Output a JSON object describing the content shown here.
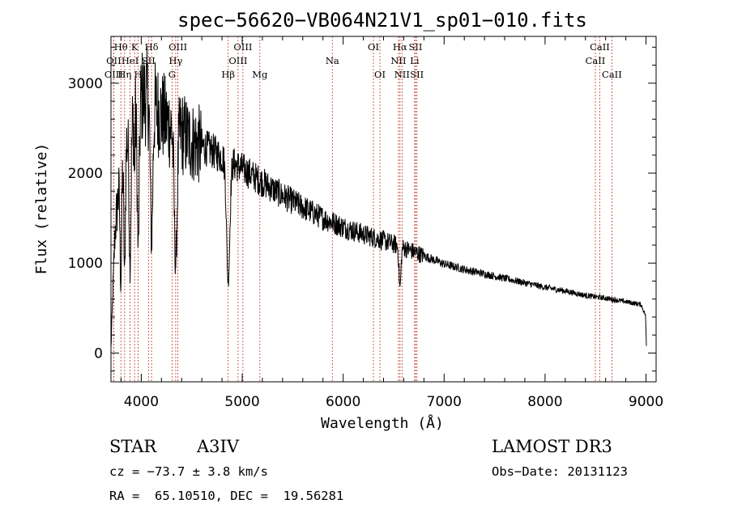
{
  "colors": {
    "spectrum": "#000000",
    "lines": "#c0392b",
    "axes": "#000000"
  },
  "info": {
    "class": "STAR",
    "subclass": "A3IV",
    "survey": "LAMOST DR3",
    "cz": "cz = −73.7 ± 3.8 km/s",
    "obsdate": "Obs−Date: 20131123",
    "radec": "RA =  65.10510, DEC =  19.56281"
  },
  "chart_data": {
    "type": "line",
    "title": "spec−56620−VB064N21V1_sp01−010.fits",
    "xlabel": "Wavelength (Å)",
    "ylabel": "Flux (relative)",
    "xlim": [
      3700,
      9100
    ],
    "ylim": [
      -320,
      3520
    ],
    "xticks": [
      4000,
      5000,
      6000,
      7000,
      8000,
      9000
    ],
    "yticks": [
      0,
      1000,
      2000,
      3000
    ],
    "continuum": [
      [
        3700,
        50
      ],
      [
        3740,
        1350
      ],
      [
        3800,
        2100
      ],
      [
        3850,
        2350
      ],
      [
        3900,
        2500
      ],
      [
        3950,
        2700
      ],
      [
        4000,
        2850
      ],
      [
        4050,
        2850
      ],
      [
        4100,
        2800
      ],
      [
        4200,
        2650
      ],
      [
        4300,
        2500
      ],
      [
        4400,
        2450
      ],
      [
        4500,
        2350
      ],
      [
        4600,
        2300
      ],
      [
        4700,
        2250
      ],
      [
        4800,
        2180
      ],
      [
        5000,
        2050
      ],
      [
        5200,
        1900
      ],
      [
        5400,
        1750
      ],
      [
        5600,
        1620
      ],
      [
        5800,
        1500
      ],
      [
        6000,
        1400
      ],
      [
        6200,
        1320
      ],
      [
        6400,
        1250
      ],
      [
        6600,
        1170
      ],
      [
        6800,
        1080
      ],
      [
        7000,
        990
      ],
      [
        7200,
        930
      ],
      [
        7400,
        880
      ],
      [
        7600,
        830
      ],
      [
        7800,
        780
      ],
      [
        8000,
        730
      ],
      [
        8200,
        690
      ],
      [
        8400,
        640
      ],
      [
        8600,
        610
      ],
      [
        8800,
        570
      ],
      [
        8950,
        540
      ],
      [
        8995,
        420
      ],
      [
        9005,
        40
      ]
    ],
    "absorption": [
      {
        "center": 3798,
        "depth": 1300,
        "width": 8
      },
      {
        "center": 3835,
        "depth": 1400,
        "width": 8
      },
      {
        "center": 3889,
        "depth": 1500,
        "width": 9
      },
      {
        "center": 3933,
        "depth": 700,
        "width": 4
      },
      {
        "center": 3970,
        "depth": 1600,
        "width": 10
      },
      {
        "center": 4102,
        "depth": 1550,
        "width": 12
      },
      {
        "center": 4341,
        "depth": 1500,
        "width": 14
      },
      {
        "center": 4861,
        "depth": 1350,
        "width": 16
      },
      {
        "center": 6563,
        "depth": 450,
        "width": 10
      }
    ],
    "noise_amplitude": 0.09,
    "spectral_lines": [
      {
        "label": "Hθ",
        "wavelength": 3798,
        "row": 1
      },
      {
        "label": "OII",
        "wavelength": 3727,
        "row": 2
      },
      {
        "label": "OIII",
        "wavelength": 3727,
        "row": 3
      },
      {
        "label": "K",
        "wavelength": 3934,
        "row": 1
      },
      {
        "label": "HeI",
        "wavelength": 3889,
        "row": 2
      },
      {
        "label": "Hη",
        "wavelength": 3835,
        "row": 3
      },
      {
        "label": "Hδ",
        "wavelength": 4102,
        "row": 1
      },
      {
        "label": "SII",
        "wavelength": 4072,
        "row": 2
      },
      {
        "label": "H",
        "wavelength": 3969,
        "row": 3
      },
      {
        "label": "OIII",
        "wavelength": 4363,
        "row": 1
      },
      {
        "label": "Hγ",
        "wavelength": 4341,
        "row": 2
      },
      {
        "label": "G",
        "wavelength": 4305,
        "row": 3
      },
      {
        "label": "OIII",
        "wavelength": 5007,
        "row": 1
      },
      {
        "label": "OIII",
        "wavelength": 4959,
        "row": 2
      },
      {
        "label": "Hβ",
        "wavelength": 4861,
        "row": 3
      },
      {
        "label": "Mg",
        "wavelength": 5175,
        "row": 3
      },
      {
        "label": "Na",
        "wavelength": 5893,
        "row": 2
      },
      {
        "label": "OI",
        "wavelength": 6300,
        "row": 1
      },
      {
        "label": "OI",
        "wavelength": 6364,
        "row": 3
      },
      {
        "label": "Hα",
        "wavelength": 6563,
        "row": 1
      },
      {
        "label": "NII",
        "wavelength": 6548,
        "row": 2
      },
      {
        "label": "NII",
        "wavelength": 6583,
        "row": 3
      },
      {
        "label": "SII",
        "wavelength": 6717,
        "row": 1
      },
      {
        "label": "Li",
        "wavelength": 6708,
        "row": 2
      },
      {
        "label": "SII",
        "wavelength": 6731,
        "row": 3
      },
      {
        "label": "CaII",
        "wavelength": 8542,
        "row": 1
      },
      {
        "label": "CaII",
        "wavelength": 8498,
        "row": 2
      },
      {
        "label": "CaII",
        "wavelength": 8662,
        "row": 3
      }
    ]
  }
}
